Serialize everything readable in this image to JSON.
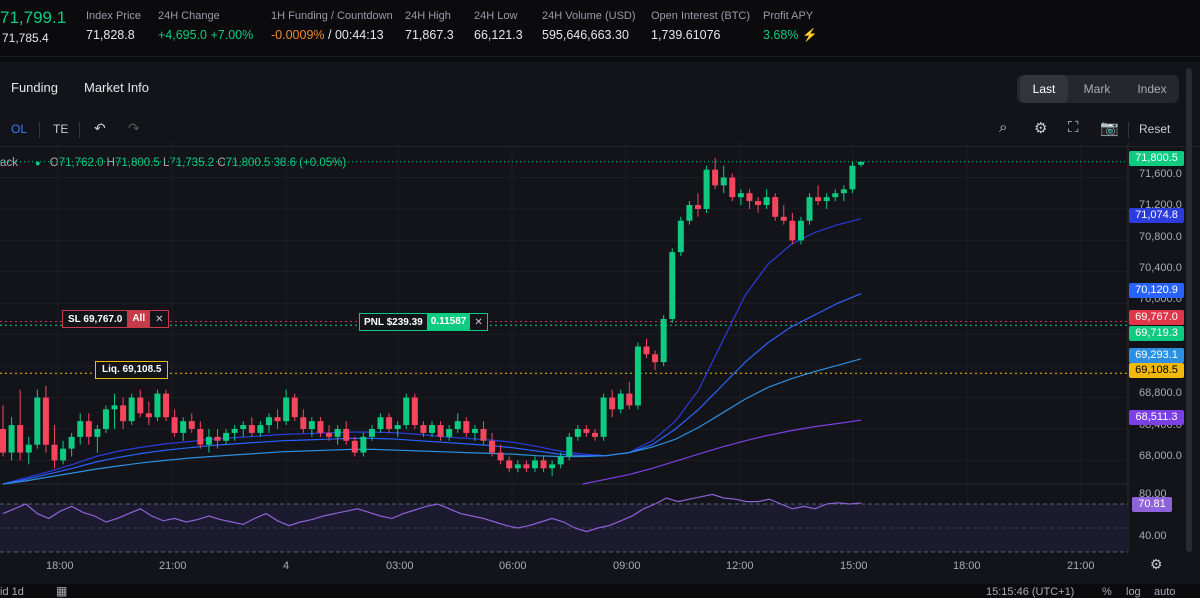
{
  "ticker": {
    "last_price": "71,799.1",
    "mark_price": "71,785.4",
    "stats": [
      {
        "label": "Index Price",
        "value": "71,828.8"
      },
      {
        "label": "24H Change",
        "value": "+4,695.0 +7.00%"
      },
      {
        "label": "1H Funding / Countdown",
        "value_a": "-0.0009%",
        "value_b": "/ 00:44:13"
      },
      {
        "label": "24H High",
        "value": "71,867.3"
      },
      {
        "label": "24H Low",
        "value": "66,121.3"
      },
      {
        "label": "24H Volume (USD)",
        "value": "595,646,663.30"
      },
      {
        "label": "Open Interest (BTC)",
        "value": "1,739.61076"
      },
      {
        "label": "Profit APY",
        "value": "3.68%"
      }
    ]
  },
  "tabs": {
    "funding": "Funding",
    "market_info": "Market Info"
  },
  "price_type": {
    "last": "Last",
    "mark": "Mark",
    "index": "Index",
    "active": "Last"
  },
  "toolbar": {
    "col": "OL",
    "te": "TE",
    "reset": "Reset"
  },
  "legend": {
    "name": "ack",
    "o": "71,762.0",
    "h": "71,800.5",
    "l": "71,735.2",
    "c": "71,800.5",
    "chg": "38.6 (+0.05%)"
  },
  "orders": {
    "sl_label": "SL 69,767.0",
    "sl_all": "All",
    "pnl_label": "PNL $239.39",
    "pnl_qty": "0.11587",
    "liq_label": "Liq. 69,108.5"
  },
  "price_labels": [
    {
      "text": "71,800.5",
      "color": "#0ecb81"
    },
    {
      "text": "71,074.8",
      "color": "#2b3bdc"
    },
    {
      "text": "70,120.9",
      "color": "#2962ff"
    },
    {
      "text": "69,767.0",
      "color": "#e0364a"
    },
    {
      "text": "69,719.3",
      "color": "#0ecb81"
    },
    {
      "text": "69,293.1",
      "color": "#2c8fe0"
    },
    {
      "text": "69,108.5",
      "color": "#f0b90b"
    },
    {
      "text": "68,511.3",
      "color": "#7b3fe4"
    },
    {
      "text": "70.81",
      "color": "#8e62d9"
    }
  ],
  "axis_ticks": [
    "71,600.0",
    "71,200.0",
    "70,800.0",
    "70,400.0",
    "70,000.0",
    "68,800.0",
    "68,400.0",
    "68,000.0",
    "80.00",
    "40.00"
  ],
  "time_ticks": [
    "18:00",
    "21:00",
    "4",
    "03:00",
    "06:00",
    "09:00",
    "12:00",
    "15:00",
    "18:00",
    "21:00"
  ],
  "bottom": {
    "intervals": "id   1d",
    "clock": "15:15:46 (UTC+1)",
    "pct": "%",
    "log": "log",
    "auto": "auto"
  },
  "chart_data": {
    "type": "candlestick",
    "ylim": [
      67700,
      71950
    ],
    "rsi_ylim": [
      30,
      85
    ],
    "candles": [
      [
        68400,
        68700,
        68050,
        68100
      ],
      [
        68100,
        68550,
        68000,
        68450
      ],
      [
        68450,
        68900,
        68000,
        68100
      ],
      [
        68100,
        68300,
        67950,
        68200
      ],
      [
        68200,
        68900,
        68150,
        68800
      ],
      [
        68800,
        68950,
        68100,
        68200
      ],
      [
        68200,
        68450,
        67900,
        68000
      ],
      [
        68000,
        68250,
        67950,
        68150
      ],
      [
        68150,
        68350,
        68050,
        68300
      ],
      [
        68300,
        68600,
        68200,
        68500
      ],
      [
        68500,
        68600,
        68200,
        68300
      ],
      [
        68300,
        68450,
        68100,
        68400
      ],
      [
        68400,
        68700,
        68350,
        68650
      ],
      [
        68650,
        68850,
        68400,
        68700
      ],
      [
        68700,
        68800,
        68400,
        68500
      ],
      [
        68500,
        68850,
        68450,
        68800
      ],
      [
        68800,
        68900,
        68550,
        68600
      ],
      [
        68600,
        68750,
        68450,
        68550
      ],
      [
        68550,
        68900,
        68500,
        68850
      ],
      [
        68850,
        68900,
        68500,
        68550
      ],
      [
        68550,
        68650,
        68300,
        68350
      ],
      [
        68350,
        68550,
        68250,
        68500
      ],
      [
        68500,
        68600,
        68350,
        68400
      ],
      [
        68400,
        68500,
        68150,
        68200
      ],
      [
        68200,
        68400,
        68100,
        68300
      ],
      [
        68300,
        68400,
        68150,
        68250
      ],
      [
        68250,
        68400,
        68200,
        68350
      ],
      [
        68350,
        68450,
        68250,
        68400
      ],
      [
        68400,
        68500,
        68300,
        68450
      ],
      [
        68450,
        68550,
        68300,
        68350
      ],
      [
        68350,
        68500,
        68300,
        68450
      ],
      [
        68450,
        68600,
        68350,
        68550
      ],
      [
        68550,
        68650,
        68400,
        68500
      ],
      [
        68500,
        68900,
        68450,
        68800
      ],
      [
        68800,
        68850,
        68500,
        68550
      ],
      [
        68550,
        68650,
        68350,
        68400
      ],
      [
        68400,
        68550,
        68300,
        68500
      ],
      [
        68500,
        68550,
        68300,
        68350
      ],
      [
        68350,
        68450,
        68250,
        68300
      ],
      [
        68300,
        68450,
        68200,
        68400
      ],
      [
        68400,
        68500,
        68200,
        68250
      ],
      [
        68250,
        68300,
        68050,
        68100
      ],
      [
        68100,
        68350,
        68050,
        68300
      ],
      [
        68300,
        68450,
        68250,
        68400
      ],
      [
        68400,
        68600,
        68350,
        68550
      ],
      [
        68550,
        68600,
        68350,
        68400
      ],
      [
        68400,
        68500,
        68300,
        68450
      ],
      [
        68450,
        68850,
        68400,
        68800
      ],
      [
        68800,
        68850,
        68400,
        68450
      ],
      [
        68450,
        68500,
        68300,
        68350
      ],
      [
        68350,
        68500,
        68300,
        68450
      ],
      [
        68450,
        68500,
        68250,
        68300
      ],
      [
        68300,
        68450,
        68250,
        68400
      ],
      [
        68400,
        68600,
        68350,
        68500
      ],
      [
        68500,
        68550,
        68300,
        68350
      ],
      [
        68350,
        68450,
        68250,
        68400
      ],
      [
        68400,
        68500,
        68200,
        68250
      ],
      [
        68250,
        68350,
        68050,
        68100
      ],
      [
        68100,
        68200,
        67950,
        68000
      ],
      [
        68000,
        68050,
        67850,
        67900
      ],
      [
        67900,
        68000,
        67850,
        67950
      ],
      [
        67950,
        68000,
        67850,
        67900
      ],
      [
        67900,
        68050,
        67850,
        68000
      ],
      [
        68000,
        68050,
        67850,
        67900
      ],
      [
        67900,
        68000,
        67800,
        67950
      ],
      [
        67950,
        68100,
        67900,
        68050
      ],
      [
        68050,
        68350,
        68000,
        68300
      ],
      [
        68300,
        68450,
        68250,
        68400
      ],
      [
        68400,
        68450,
        68300,
        68350
      ],
      [
        68350,
        68400,
        68250,
        68300
      ],
      [
        68300,
        68850,
        68250,
        68800
      ],
      [
        68800,
        68900,
        68550,
        68650
      ],
      [
        68650,
        68900,
        68600,
        68850
      ],
      [
        68850,
        69000,
        68650,
        68700
      ],
      [
        68700,
        69500,
        68650,
        69450
      ],
      [
        69450,
        69550,
        69300,
        69350
      ],
      [
        69350,
        69400,
        69150,
        69250
      ],
      [
        69250,
        69850,
        69200,
        69800
      ],
      [
        69800,
        70700,
        69750,
        70650
      ],
      [
        70650,
        71100,
        70600,
        71050
      ],
      [
        71050,
        71300,
        71000,
        71250
      ],
      [
        71250,
        71400,
        71100,
        71200
      ],
      [
        71200,
        71750,
        71150,
        71700
      ],
      [
        71700,
        71850,
        71450,
        71500
      ],
      [
        71500,
        71750,
        71400,
        71600
      ],
      [
        71600,
        71650,
        71300,
        71350
      ],
      [
        71350,
        71450,
        71250,
        71400
      ],
      [
        71400,
        71450,
        71200,
        71300
      ],
      [
        71300,
        71350,
        71150,
        71250
      ],
      [
        71250,
        71450,
        71200,
        71350
      ],
      [
        71350,
        71400,
        71050,
        71100
      ],
      [
        71100,
        71250,
        71000,
        71050
      ],
      [
        71050,
        71150,
        70750,
        70800
      ],
      [
        70800,
        71100,
        70750,
        71050
      ],
      [
        71050,
        71400,
        71000,
        71350
      ],
      [
        71350,
        71500,
        71250,
        71300
      ],
      [
        71300,
        71400,
        71200,
        71350
      ],
      [
        71350,
        71450,
        71300,
        71400
      ],
      [
        71400,
        71500,
        71300,
        71450
      ],
      [
        71450,
        71800,
        71400,
        71750
      ],
      [
        71762,
        71800.5,
        71735.2,
        71800.5
      ]
    ],
    "ma_series": [
      {
        "color": "#2b3bdc",
        "values": [
          67700,
          67780,
          67860,
          67950,
          68050,
          68120,
          68170,
          68210,
          68240,
          68270,
          68290,
          68310,
          68330,
          68340,
          68350,
          68360,
          68360,
          68350,
          68330,
          68300,
          68280,
          68260,
          68230,
          68180,
          68120,
          68080,
          68060,
          68100,
          68250,
          68500,
          68900,
          69500,
          70100,
          70500,
          70750,
          70900,
          71000,
          71074.8
        ]
      },
      {
        "color": "#2962ff",
        "values": [
          67700,
          67760,
          67830,
          67900,
          67980,
          68040,
          68090,
          68130,
          68160,
          68190,
          68210,
          68230,
          68250,
          68260,
          68270,
          68280,
          68280,
          68270,
          68250,
          68230,
          68210,
          68190,
          68160,
          68120,
          68080,
          68060,
          68060,
          68100,
          68200,
          68400,
          68650,
          68950,
          69250,
          69500,
          69700,
          69850,
          70000,
          70120.9
        ]
      },
      {
        "color": "#2c8fe0",
        "values": [
          67700,
          67740,
          67790,
          67840,
          67890,
          67930,
          67970,
          68000,
          68030,
          68050,
          68070,
          68090,
          68110,
          68120,
          68130,
          68140,
          68140,
          68130,
          68120,
          68110,
          68100,
          68090,
          68080,
          68060,
          68050,
          68050,
          68060,
          68100,
          68170,
          68270,
          68420,
          68600,
          68780,
          68930,
          69040,
          69130,
          69210,
          69293.1
        ]
      },
      {
        "color": "#7b3fe4",
        "values": [
          null,
          null,
          null,
          null,
          null,
          null,
          null,
          null,
          null,
          null,
          null,
          null,
          null,
          null,
          null,
          null,
          null,
          null,
          null,
          null,
          null,
          null,
          null,
          null,
          null,
          67700,
          67760,
          67820,
          67900,
          67990,
          68080,
          68170,
          68250,
          68320,
          68380,
          68430,
          68470,
          68511.3
        ]
      }
    ],
    "rsi": [
      62,
      66,
      70,
      62,
      58,
      64,
      68,
      63,
      60,
      55,
      58,
      62,
      66,
      60,
      56,
      58,
      55,
      57,
      60,
      57,
      55,
      53,
      58,
      62,
      56,
      52,
      55,
      57,
      60,
      62,
      64,
      66,
      63,
      60,
      58,
      62,
      65,
      68,
      70,
      66,
      62,
      60,
      58,
      55,
      52,
      50,
      52,
      55,
      58,
      55,
      50,
      47,
      50,
      52,
      56,
      60,
      66,
      70,
      75,
      72,
      74,
      76,
      78,
      75,
      74,
      72,
      72,
      74,
      70,
      66,
      68,
      66,
      70,
      71,
      70,
      70.81
    ],
    "levels": {
      "sl": 69767.0,
      "entry": 69719.3,
      "liq": 69108.5
    }
  }
}
